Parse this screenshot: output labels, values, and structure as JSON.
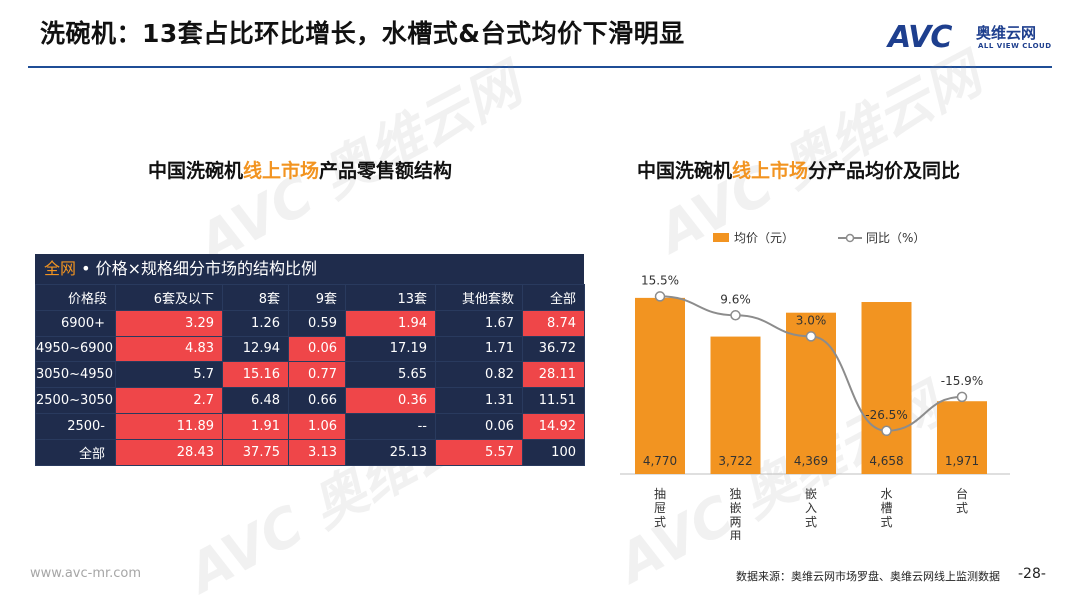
{
  "header": {
    "title": "洗碗机：13套占比环比增长，水槽式&台式均价下滑明显",
    "logo_mark": "AVC",
    "logo_cn": "奥维云网",
    "logo_en": "ALL VIEW CLOUD"
  },
  "watermark": {
    "text": "AVC 奥维云网"
  },
  "left_panel": {
    "title_pre": "中国洗碗机",
    "title_hl": "线上市场",
    "title_post": "产品零售额结构",
    "table_tag": "全网",
    "table_title": " • 价格×规格细分市场的结构比例",
    "columns": [
      "价格段",
      "6套及以下",
      "8套",
      "9套",
      "13套",
      "其他套数",
      "全部"
    ],
    "rows": [
      {
        "label": "6900+",
        "cells": [
          "3.29",
          "1.26",
          "0.59",
          "1.94",
          "1.67",
          "8.74"
        ]
      },
      {
        "label": "4950~6900",
        "cells": [
          "4.83",
          "12.94",
          "0.06",
          "17.19",
          "1.71",
          "36.72"
        ]
      },
      {
        "label": "3050~4950",
        "cells": [
          "5.7",
          "15.16",
          "0.77",
          "5.65",
          "0.82",
          "28.11"
        ]
      },
      {
        "label": "2500~3050",
        "cells": [
          "2.7",
          "6.48",
          "0.66",
          "0.36",
          "1.31",
          "11.51"
        ]
      },
      {
        "label": "2500-",
        "cells": [
          "11.89",
          "1.91",
          "1.06",
          "--",
          "0.06",
          "14.92"
        ]
      },
      {
        "label": "全部",
        "cells": [
          "28.43",
          "37.75",
          "3.13",
          "25.13",
          "5.57",
          "100"
        ]
      }
    ],
    "highlight": [
      [
        true,
        false,
        false,
        true,
        false,
        true
      ],
      [
        true,
        false,
        true,
        false,
        false,
        false
      ],
      [
        false,
        true,
        true,
        false,
        false,
        true
      ],
      [
        true,
        false,
        false,
        true,
        false,
        false
      ],
      [
        true,
        true,
        true,
        false,
        false,
        true
      ],
      [
        true,
        true,
        true,
        false,
        true,
        false
      ]
    ],
    "colors": {
      "dark": "#1f2c4c",
      "red": "#ef4649",
      "accent": "#f29421"
    }
  },
  "right_panel": {
    "title_pre": "中国洗碗机",
    "title_hl": "线上市场",
    "title_post": "分产品均价及同比"
  },
  "chart_data": {
    "type": "bar",
    "title": "中国洗碗机线上市场分产品均价及同比",
    "categories": [
      "抽屉式",
      "独嵌两用",
      "嵌入式",
      "水槽式",
      "台式"
    ],
    "series": [
      {
        "name": "均价（元）",
        "type": "bar",
        "values": [
          4770,
          3722,
          4369,
          4658,
          1971
        ],
        "labels": [
          "4,770",
          "3,722",
          "4,369",
          "4,658",
          "1,971"
        ],
        "color": "#f29421"
      },
      {
        "name": "同比（%）",
        "type": "line",
        "values": [
          15.5,
          9.6,
          3.0,
          -26.5,
          -15.9
        ],
        "labels": [
          "15.5%",
          "9.6%",
          "3.0%",
          "-26.5%",
          "-15.9%"
        ],
        "color": "#8c8c8c"
      }
    ],
    "bar_ylim": [
      0,
      6500
    ],
    "line_ylim": [
      -40,
      35
    ],
    "legend": "top-center"
  },
  "footer": {
    "website": "www.avc-mr.com",
    "source": "数据来源：奥维云网市场罗盘、奥维云网线上监测数据",
    "page": "-28-"
  }
}
